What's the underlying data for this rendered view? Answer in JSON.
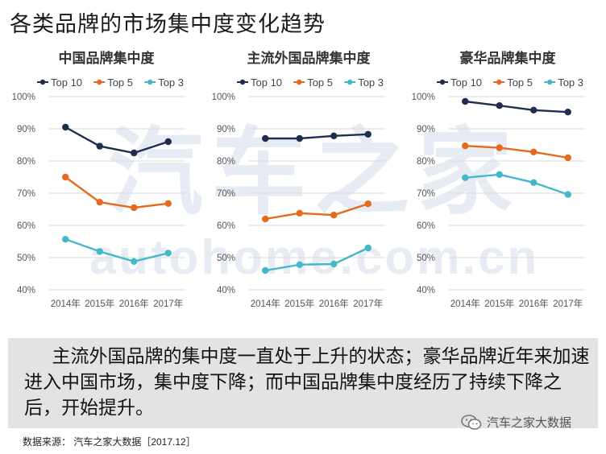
{
  "title": "各类品牌的市场集中度变化趋势",
  "watermark": {
    "cn": "汽车之家",
    "en": "autohome.com.cn"
  },
  "colors": {
    "top10": "#1f2d4f",
    "top5": "#e66a1e",
    "top3": "#44b8c8",
    "grid": "#d9d9d9",
    "axis": "#555555"
  },
  "chart_data": [
    {
      "type": "line",
      "title": "中国品牌集中度",
      "categories": [
        "2014年",
        "2015年",
        "2016年",
        "2017年"
      ],
      "yticks": [
        "40%",
        "50%",
        "60%",
        "70%",
        "80%",
        "90%",
        "100%"
      ],
      "ylim": [
        40,
        100
      ],
      "series": [
        {
          "name": "Top 10",
          "values": [
            90.5,
            84.6,
            82.5,
            86.0
          ]
        },
        {
          "name": "Top 5",
          "values": [
            75.0,
            67.2,
            65.5,
            66.8
          ]
        },
        {
          "name": "Top 3",
          "values": [
            55.7,
            51.9,
            48.8,
            51.4
          ]
        }
      ]
    },
    {
      "type": "line",
      "title": "主流外国品牌集中度",
      "categories": [
        "2014年",
        "2015年",
        "2016年",
        "2017年"
      ],
      "yticks": [
        "40%",
        "50%",
        "60%",
        "70%",
        "80%",
        "90%",
        "100%"
      ],
      "ylim": [
        40,
        100
      ],
      "series": [
        {
          "name": "Top 10",
          "values": [
            87.0,
            87.0,
            87.8,
            88.3
          ]
        },
        {
          "name": "Top 5",
          "values": [
            62.0,
            63.8,
            63.2,
            66.7
          ]
        },
        {
          "name": "Top 3",
          "values": [
            46.0,
            47.8,
            48.0,
            53.0
          ]
        }
      ]
    },
    {
      "type": "line",
      "title": "豪华品牌集中度",
      "categories": [
        "2014年",
        "2015年",
        "2016年",
        "2017年"
      ],
      "yticks": [
        "40%",
        "50%",
        "60%",
        "70%",
        "80%",
        "90%",
        "100%"
      ],
      "ylim": [
        40,
        100
      ],
      "series": [
        {
          "name": "Top 10",
          "values": [
            98.5,
            97.2,
            95.8,
            95.2
          ]
        },
        {
          "name": "Top 5",
          "values": [
            84.7,
            84.1,
            82.8,
            81.0
          ]
        },
        {
          "name": "Top 3",
          "values": [
            74.8,
            75.8,
            73.3,
            69.6
          ]
        }
      ]
    }
  ],
  "note": "主流外国品牌的集中度一直处于上升的状态；豪华品牌近年来加速进入中国市场，集中度下降；而中国品牌集中度经历了持续下降之后，开始提升。",
  "source": "数据来源： 汽车之家大数据［2017.12］",
  "wechat_label": "汽车之家大数据",
  "wechat_icon": "wechat-icon"
}
